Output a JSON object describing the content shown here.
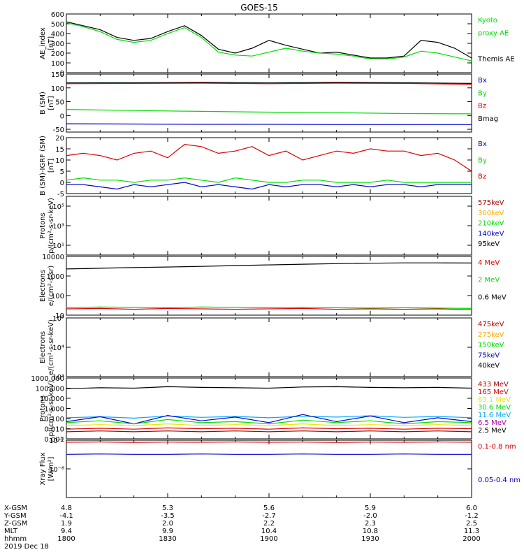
{
  "title": "GOES-15",
  "colors": {
    "black": "#000000",
    "red": "#dd0000",
    "green": "#00dd00",
    "blue": "#0000cc",
    "orange": "#ffaa00",
    "yellow": "#e8e800",
    "cyan": "#00aaff",
    "purple": "#aa00aa",
    "darkred": "#aa0000"
  },
  "chart_data": [
    {
      "type": "line",
      "ylabel": [
        "AE_index",
        "[nT]"
      ],
      "ylim": [
        0,
        600
      ],
      "ylog": false,
      "yticks": [
        "0",
        "100",
        "200",
        "300",
        "400",
        "500",
        "600"
      ],
      "yticks_val": [
        0,
        100,
        200,
        300,
        400,
        500,
        600
      ],
      "legend": [
        {
          "text": "Kyoto",
          "color": "#00dd00"
        },
        {
          "text": "proxy AE",
          "color": "#00dd00"
        },
        {
          "text": "",
          "color": "#000"
        },
        {
          "text": "Themis AE",
          "color": "#000000"
        }
      ],
      "x_minutes": [
        0,
        5,
        10,
        15,
        20,
        25,
        30,
        35,
        40,
        45,
        50,
        55,
        60,
        65,
        70,
        75,
        80,
        85,
        90,
        95,
        100,
        105,
        110,
        115,
        120
      ],
      "series": [
        {
          "name": "Themis AE",
          "color": "#000000",
          "values": [
            520,
            480,
            440,
            360,
            330,
            350,
            420,
            480,
            380,
            240,
            200,
            250,
            330,
            280,
            240,
            200,
            210,
            180,
            150,
            150,
            170,
            330,
            310,
            250,
            150
          ]
        },
        {
          "name": "Kyoto proxy AE",
          "color": "#00dd00",
          "values": [
            510,
            470,
            420,
            340,
            310,
            330,
            400,
            460,
            360,
            210,
            180,
            170,
            210,
            250,
            220,
            200,
            190,
            170,
            140,
            140,
            160,
            220,
            200,
            160,
            120
          ]
        }
      ]
    },
    {
      "type": "line",
      "ylabel": [
        "B (SM)",
        "[nT]"
      ],
      "ylim": [
        -60,
        150
      ],
      "ylog": false,
      "yticks": [
        "-50",
        "0",
        "50",
        "100",
        "150"
      ],
      "yticks_val": [
        -50,
        0,
        50,
        100,
        150
      ],
      "legend": [
        {
          "text": "Bx",
          "color": "#0000cc"
        },
        {
          "text": "By",
          "color": "#00dd00"
        },
        {
          "text": "Bz",
          "color": "#dd0000"
        },
        {
          "text": "Bmag",
          "color": "#000000"
        }
      ],
      "x_minutes": [
        0,
        20,
        40,
        60,
        80,
        100,
        120
      ],
      "series": [
        {
          "name": "Bx",
          "color": "#0000cc",
          "values": [
            -30,
            -31,
            -32,
            -32,
            -33,
            -33,
            -33
          ]
        },
        {
          "name": "By",
          "color": "#00dd00",
          "values": [
            22,
            18,
            15,
            12,
            10,
            7,
            6
          ]
        },
        {
          "name": "Bz",
          "color": "#dd0000",
          "values": [
            115,
            116,
            117,
            115,
            117,
            116,
            113
          ]
        },
        {
          "name": "Bmag",
          "color": "#000000",
          "values": [
            118,
            119,
            120,
            118,
            120,
            119,
            116
          ]
        }
      ]
    },
    {
      "type": "line",
      "ylabel": [
        "B (SM)-IGRF (SM)",
        "[nT]"
      ],
      "ylim": [
        -5,
        20
      ],
      "ylog": false,
      "yticks": [
        "-5",
        "0",
        "5",
        "10",
        "15",
        "20"
      ],
      "yticks_val": [
        -5,
        0,
        5,
        10,
        15,
        20
      ],
      "legend": [
        {
          "text": "Bx",
          "color": "#0000cc"
        },
        {
          "text": "By",
          "color": "#00dd00"
        },
        {
          "text": "Bz",
          "color": "#dd0000"
        }
      ],
      "x_minutes": [
        0,
        5,
        10,
        15,
        20,
        25,
        30,
        35,
        40,
        45,
        50,
        55,
        60,
        65,
        70,
        75,
        80,
        85,
        90,
        95,
        100,
        105,
        110,
        115,
        120
      ],
      "series": [
        {
          "name": "Bz",
          "color": "#dd0000",
          "values": [
            12,
            13,
            12,
            10,
            13,
            14,
            11,
            17,
            16,
            13,
            14,
            16,
            12,
            14,
            10,
            12,
            14,
            13,
            15,
            14,
            14,
            12,
            13,
            10,
            5
          ]
        },
        {
          "name": "By",
          "color": "#00dd00",
          "values": [
            1,
            2,
            1,
            1,
            0,
            1,
            1,
            2,
            1,
            0,
            2,
            1,
            0,
            0,
            1,
            1,
            0,
            0,
            0,
            1,
            0,
            0,
            0,
            0,
            0
          ]
        },
        {
          "name": "Bx",
          "color": "#0000cc",
          "values": [
            -1,
            -1,
            -2,
            -3,
            -1,
            -2,
            -1,
            0,
            -2,
            -1,
            -2,
            -3,
            -1,
            -2,
            -1,
            -1,
            -2,
            -1,
            -2,
            -1,
            -1,
            -2,
            -1,
            -1,
            -1
          ]
        }
      ]
    },
    {
      "type": "line",
      "ylabel": [
        "Protons",
        "p/(cm²-s-sr-keV)"
      ],
      "ylim": [
        1,
        1000000
      ],
      "ylog": true,
      "yticks": [
        "10¹",
        "10³",
        "10⁵"
      ],
      "yticks_val": [
        10,
        1000,
        100000
      ],
      "legend": [
        {
          "text": "575keV",
          "color": "#aa0000"
        },
        {
          "text": "300keV",
          "color": "#ffaa00"
        },
        {
          "text": "210keV",
          "color": "#00dd00"
        },
        {
          "text": "140keV",
          "color": "#0000cc"
        },
        {
          "text": "95keV",
          "color": "#000000"
        }
      ],
      "x_minutes": [],
      "series": []
    },
    {
      "type": "line",
      "ylabel": [
        "Electrons",
        "e/(cm²-s-sr)"
      ],
      "ylim": [
        10,
        10000
      ],
      "ylog": true,
      "yticks": [
        "10",
        "100",
        "1000",
        "10000"
      ],
      "yticks_val": [
        10,
        100,
        1000,
        10000
      ],
      "legend": [
        {
          "text": "4 MeV",
          "color": "#dd0000"
        },
        {
          "text": "2 MeV",
          "color": "#00dd00"
        },
        {
          "text": "0.6 MeV",
          "color": "#000000"
        }
      ],
      "x_minutes": [
        0,
        10,
        20,
        30,
        40,
        50,
        60,
        70,
        80,
        90,
        100,
        110,
        120
      ],
      "series": [
        {
          "name": "0.6 MeV",
          "color": "#000000",
          "values": [
            2300,
            2500,
            2700,
            2900,
            3100,
            3400,
            3700,
            4000,
            4300,
            4500,
            4700,
            4700,
            4600
          ]
        },
        {
          "name": "2 MeV",
          "color": "#00dd00",
          "values": [
            24,
            26,
            25,
            24,
            26,
            25,
            24,
            25,
            24,
            23,
            24,
            23,
            22
          ]
        },
        {
          "name": "4 MeV",
          "color": "#dd0000",
          "values": [
            21,
            22,
            20,
            22,
            21,
            20,
            21,
            22,
            20,
            21,
            20,
            21,
            19
          ]
        }
      ]
    },
    {
      "type": "line",
      "ylabel": [
        "Electrons",
        "e/(cm²-s-sr-keV)"
      ],
      "ylim": [
        1000,
        100000
      ],
      "ylog": true,
      "yticks": [
        "10³",
        "10⁴",
        "10⁵"
      ],
      "yticks_val": [
        1000,
        10000,
        100000
      ],
      "legend": [
        {
          "text": "475keV",
          "color": "#aa0000"
        },
        {
          "text": "275keV",
          "color": "#ffaa00"
        },
        {
          "text": "150keV",
          "color": "#00dd00"
        },
        {
          "text": "75keV",
          "color": "#0000cc"
        },
        {
          "text": "40keV",
          "color": "#000000"
        }
      ],
      "x_minutes": [],
      "series": []
    },
    {
      "type": "line",
      "ylabel": [
        "Protons",
        "p/(cm²-s-sr-keV)"
      ],
      "ylim": [
        0.001,
        1000
      ],
      "ylog": true,
      "yticks": [
        "0.001",
        "0.010",
        "0.100",
        "1.000",
        "10.000",
        "100.000",
        "1000.000"
      ],
      "yticks_val": [
        0.001,
        0.01,
        0.1,
        1,
        10,
        100,
        1000
      ],
      "legend": [
        {
          "text": "433 MeV",
          "color": "#aa0000"
        },
        {
          "text": "165 MeV",
          "color": "#dd0000"
        },
        {
          "text": "63.1 MeV",
          "color": "#e8e800"
        },
        {
          "text": "30.6 MeV",
          "color": "#00dd00"
        },
        {
          "text": "11.6 MeV",
          "color": "#00aaff"
        },
        {
          "text": "6.5 MeV",
          "color": "#aa00aa"
        },
        {
          "text": "2.5 MeV",
          "color": "#000000"
        }
      ],
      "x_minutes": [
        0,
        10,
        20,
        30,
        40,
        50,
        60,
        70,
        80,
        90,
        100,
        110,
        120
      ],
      "series": [
        {
          "name": "2.5 MeV",
          "color": "#000000",
          "values": [
            90,
            110,
            100,
            140,
            120,
            110,
            100,
            130,
            140,
            120,
            110,
            120,
            100
          ]
        },
        {
          "name": "11.6 MeV",
          "color": "#00aaff",
          "values": [
            0.12,
            0.15,
            0.11,
            0.18,
            0.13,
            0.16,
            0.12,
            0.17,
            0.14,
            0.19,
            0.13,
            0.16,
            0.12
          ]
        },
        {
          "name": "6.5 MeV",
          "color": "#0000cc",
          "values": [
            0.05,
            0.15,
            0.03,
            0.2,
            0.06,
            0.14,
            0.04,
            0.25,
            0.05,
            0.18,
            0.04,
            0.12,
            0.05
          ]
        },
        {
          "name": "30.6 MeV",
          "color": "#00dd00",
          "values": [
            0.04,
            0.06,
            0.03,
            0.08,
            0.04,
            0.05,
            0.03,
            0.07,
            0.04,
            0.06,
            0.03,
            0.05,
            0.04
          ]
        },
        {
          "name": "63.1 MeV",
          "color": "#e8e800",
          "values": [
            0.02,
            0.025,
            0.02,
            0.03,
            0.02,
            0.025,
            0.02,
            0.03,
            0.02,
            0.025,
            0.02,
            0.025,
            0.02
          ]
        },
        {
          "name": "165 MeV",
          "color": "#dd0000",
          "values": [
            0.009,
            0.011,
            0.009,
            0.012,
            0.01,
            0.011,
            0.009,
            0.012,
            0.01,
            0.011,
            0.009,
            0.011,
            0.01
          ]
        },
        {
          "name": "433 MeV",
          "color": "#aa0000",
          "values": [
            0.005,
            0.006,
            0.005,
            0.006,
            0.005,
            0.006,
            0.005,
            0.006,
            0.005,
            0.006,
            0.005,
            0.006,
            0.005
          ]
        }
      ]
    },
    {
      "type": "line",
      "ylabel": [
        "Xray Flux",
        "[W/m²]"
      ],
      "ylim": [
        1e-09,
        1e-07
      ],
      "ylog": true,
      "yticks": [
        "10⁻⁸",
        "10⁻⁷"
      ],
      "yticks_val": [
        1e-08,
        1e-07
      ],
      "legend": [
        {
          "text": "0.1-0.8 nm",
          "color": "#dd0000"
        },
        {
          "text": "",
          "color": "#000"
        },
        {
          "text": "0.05-0.4 nm",
          "color": "#0000cc"
        }
      ],
      "x_minutes": [
        0,
        10,
        20,
        30,
        40,
        50,
        60,
        70,
        80,
        90,
        100,
        110,
        120
      ],
      "series": [
        {
          "name": "0.1-0.8 nm",
          "color": "#dd0000",
          "values": [
            8.5e-08,
            8.7e-08,
            8.4e-08,
            8.6e-08,
            8.5e-08,
            8.7e-08,
            8.5e-08,
            8.6e-08,
            8.4e-08,
            8.6e-08,
            8.5e-08,
            8.7e-08,
            8.5e-08
          ]
        },
        {
          "name": "0.05-0.4 nm",
          "color": "#0000cc",
          "values": [
            3.2e-08,
            3.3e-08,
            3.2e-08,
            3.2e-08,
            3.3e-08,
            3.2e-08,
            3.2e-08,
            3.3e-08,
            3.2e-08,
            3.2e-08,
            3.3e-08,
            3.2e-08,
            3.2e-08
          ]
        }
      ]
    }
  ],
  "xaxis": {
    "row_labels": [
      "X-GSM",
      "Y-GSM",
      "Z-GSM",
      "MLT",
      "hhmm",
      "2019 Dec 18"
    ],
    "columns": [
      [
        "4.8",
        "-4.1",
        "1.9",
        "9.4",
        "1800"
      ],
      [
        "5.3",
        "-3.5",
        "2.0",
        "9.9",
        "1830"
      ],
      [
        "5.6",
        "-2.7",
        "2.2",
        "10.4",
        "1900"
      ],
      [
        "5.9",
        "-2.0",
        "2.3",
        "10.8",
        "1930"
      ],
      [
        "6.0",
        "-1.2",
        "2.5",
        "11.3",
        "2000"
      ]
    ]
  }
}
